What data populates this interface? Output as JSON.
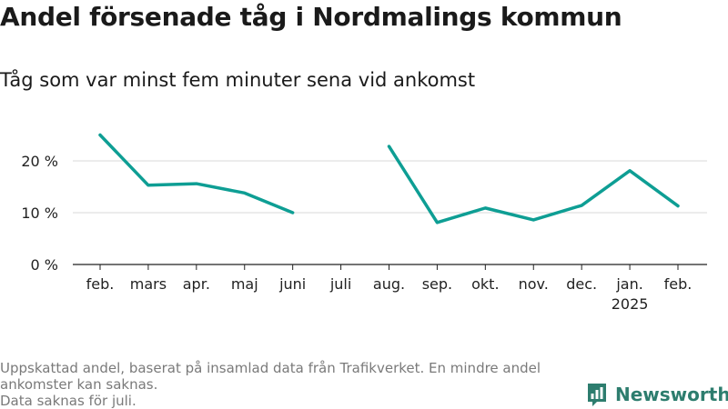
{
  "title": "Andel försenade tåg i Nordmalings kommun",
  "subtitle": "Tåg som var minst fem minuter sena vid ankomst",
  "footnote": {
    "line1": "Uppskattad andel, baserat på insamlad data från Trafikverket. En mindre andel ankomster kan saknas.",
    "line2": "Data saknas för juli."
  },
  "logo": {
    "text": "Newsworthy",
    "icon": "bar-chart-bubble-icon"
  },
  "colors": {
    "line": "#0e9e94",
    "grid": "#d9d9d9",
    "axis": "#222222",
    "logo": "#2d7d6e"
  },
  "chart_data": {
    "type": "line",
    "categories": [
      "feb.",
      "mars",
      "apr.",
      "maj",
      "juni",
      "juli",
      "aug.",
      "sep.",
      "okt.",
      "nov.",
      "dec.",
      "jan.",
      "feb."
    ],
    "category_sublabels": [
      "",
      "",
      "",
      "",
      "",
      "",
      "",
      "",
      "",
      "",
      "",
      "2025",
      ""
    ],
    "series": [
      {
        "values": [
          25.0,
          15.3,
          15.6,
          13.8,
          10.0,
          null,
          22.8,
          8.1,
          10.9,
          8.6,
          11.4,
          18.1,
          11.3
        ]
      }
    ],
    "yticks": [
      0,
      10,
      20
    ],
    "ytick_labels": [
      "0 %",
      "10 %",
      "20 %"
    ],
    "ylim": [
      0,
      27
    ],
    "grid": true,
    "legend": "none"
  }
}
